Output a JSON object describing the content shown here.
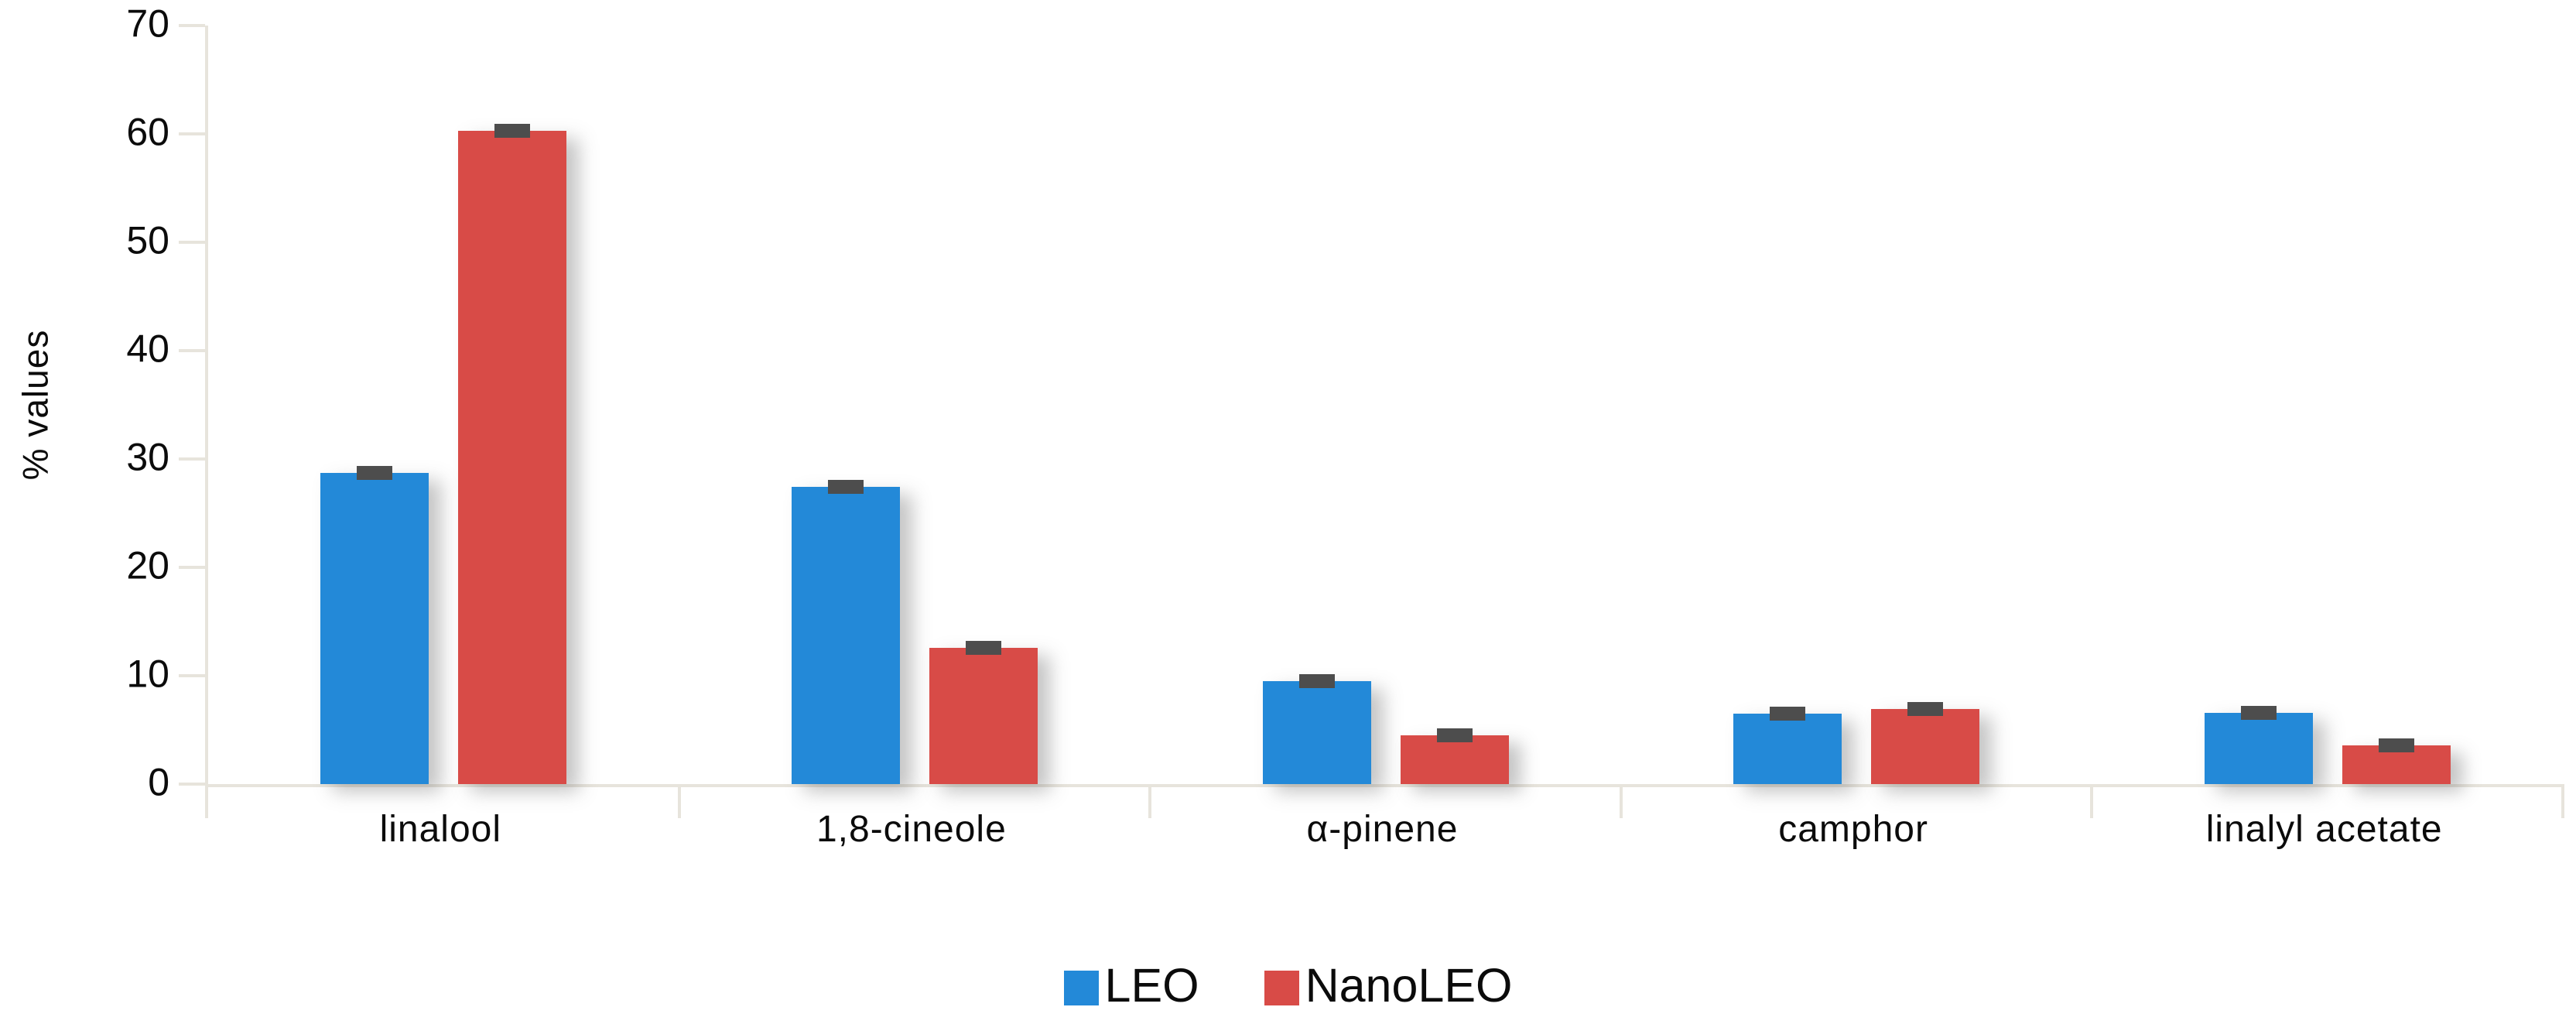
{
  "chart_data": {
    "type": "bar",
    "title": "",
    "categories": [
      "linalool",
      "1,8-cineole",
      "α-pinene",
      "camphor",
      "linalyl acetate"
    ],
    "series": [
      {
        "name": "LEO",
        "color": "#2389d8",
        "values": [
          28.7,
          27.4,
          9.5,
          6.5,
          6.6
        ],
        "errors": [
          0.5,
          0.4,
          0.5,
          0.4,
          0.4
        ]
      },
      {
        "name": "NanoLEO",
        "color": "#d84b47",
        "values": [
          60.3,
          12.6,
          4.5,
          6.9,
          3.6
        ],
        "errors": [
          0.5,
          0.5,
          0.4,
          0.5,
          0.4
        ]
      }
    ],
    "xlabel": "",
    "ylabel": "% values",
    "ylim": [
      0,
      70
    ],
    "yticks": [
      0,
      10,
      20,
      30,
      40,
      50,
      60,
      70
    ],
    "grid": false,
    "legend_position": "bottom",
    "error_bar_style": "cap-at-bar-top"
  },
  "colors": {
    "leo_bar": "#2389d8",
    "nanoleo_bar": "#d84b47",
    "error_cap": "#4d4d4d",
    "axis_line": "#e7e4dc",
    "text": "#0b0b0b",
    "background": "#ffffff"
  }
}
